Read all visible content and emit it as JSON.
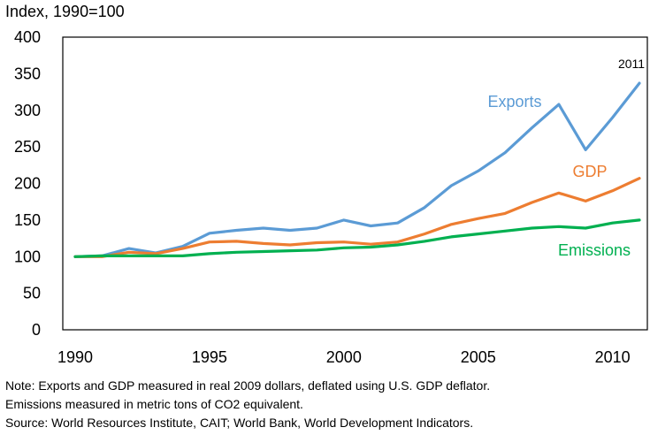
{
  "chart_data": {
    "type": "line",
    "title": "",
    "xlabel": "",
    "ylabel": "Index, 1990=100",
    "ylim": [
      0,
      400
    ],
    "xlim": [
      1990,
      2011
    ],
    "yticks": [
      0,
      50,
      100,
      150,
      200,
      250,
      300,
      350,
      400
    ],
    "xticks": [
      1990,
      1995,
      2000,
      2005,
      2010
    ],
    "grid": false,
    "legend": "direct labels on lines",
    "x": [
      1990,
      1991,
      1992,
      1993,
      1994,
      1995,
      1996,
      1997,
      1998,
      1999,
      2000,
      2001,
      2002,
      2003,
      2004,
      2005,
      2006,
      2007,
      2008,
      2009,
      2010,
      2011
    ],
    "series": [
      {
        "name": "Exports",
        "color": "#5b9bd5",
        "values": [
          100,
          101,
          111,
          105,
          114,
          132,
          136,
          139,
          136,
          139,
          150,
          142,
          146,
          167,
          197,
          217,
          242,
          276,
          308,
          246,
          290,
          337
        ]
      },
      {
        "name": "GDP",
        "color": "#ed7d31",
        "values": [
          100,
          100,
          106,
          104,
          111,
          120,
          121,
          118,
          116,
          119,
          120,
          117,
          120,
          131,
          144,
          152,
          159,
          174,
          187,
          176,
          190,
          207
        ]
      },
      {
        "name": "Emissions",
        "color": "#00b050",
        "values": [
          100,
          101,
          101,
          101,
          101,
          104,
          106,
          107,
          108,
          109,
          112,
          113,
          116,
          121,
          127,
          131,
          135,
          139,
          141,
          139,
          146,
          150
        ]
      }
    ],
    "annotations": [
      {
        "text": "2011",
        "x": 2011,
        "y": 337
      }
    ]
  },
  "notes": {
    "line1": "Note: Exports and GDP measured in real 2009 dollars, deflated using U.S. GDP deflator.",
    "line2": "Emissions measured in metric tons of CO2 equivalent.",
    "line3": "Source: World Resources Institute, CAIT; World Bank, World Development Indicators."
  }
}
